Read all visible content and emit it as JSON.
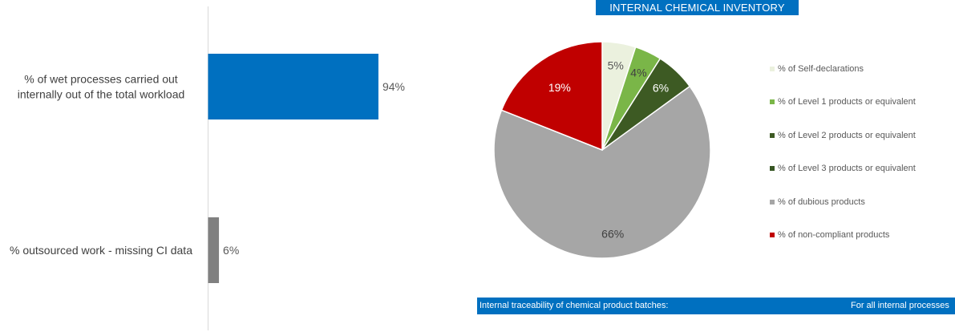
{
  "chart_data": [
    {
      "type": "bar",
      "orientation": "horizontal",
      "categories": [
        "% of wet processes carried out internally out of the total workload",
        "% outsourced work - missing CI data"
      ],
      "values": [
        94,
        6
      ],
      "value_labels": [
        "94%",
        "6%"
      ],
      "colors": [
        "#0070c0",
        "#808080"
      ],
      "xlim": [
        0,
        100
      ],
      "grid": false,
      "title": "",
      "xlabel": "",
      "ylabel": ""
    },
    {
      "type": "pie",
      "title": "INTERNAL CHEMICAL INVENTORY",
      "categories": [
        "% of Self-declarations",
        "% of Level 1 products or equivalent",
        "% of Level 2 products or equivalent",
        "% of Level 3 products or equivalent",
        "% of dubious products",
        "% of non-compliant products"
      ],
      "values": [
        5,
        4,
        6,
        0,
        66,
        19
      ],
      "value_labels": [
        "5%",
        "4%",
        "6%",
        "",
        "66%",
        "19%"
      ],
      "colors": [
        "#ebf1de",
        "#7ab648",
        "#3d5a23",
        "#375623",
        "#a6a6a6",
        "#c00000"
      ],
      "legend_position": "right"
    }
  ],
  "traceability": {
    "label": "Internal traceability of chemical product batches:",
    "value": "For all internal processes"
  }
}
